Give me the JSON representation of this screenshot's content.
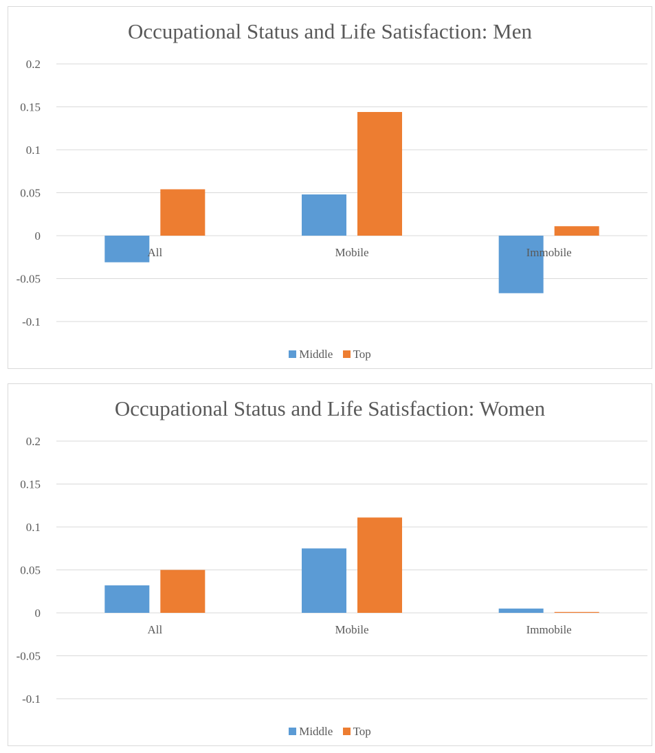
{
  "colors": {
    "middle": "#5b9bd5",
    "top": "#ed7d31",
    "grid": "#d9d9d9",
    "text": "#595959"
  },
  "chart_data": [
    {
      "type": "bar",
      "title": "Occupational Status and Life Satisfaction: Men",
      "categories": [
        "All",
        "Mobile",
        "Immobile"
      ],
      "series": [
        {
          "name": "Middle",
          "values": [
            -0.031,
            0.048,
            -0.067
          ]
        },
        {
          "name": "Top",
          "values": [
            0.054,
            0.144,
            0.011
          ]
        }
      ],
      "ylim": [
        -0.1,
        0.2
      ],
      "yticks": [
        "0.2",
        "0.15",
        "0.1",
        "0.05",
        "0",
        "-0.05",
        "-0.1"
      ],
      "grid": true,
      "legend": "bottom"
    },
    {
      "type": "bar",
      "title": "Occupational Status and Life Satisfaction: Women",
      "categories": [
        "All",
        "Mobile",
        "Immobile"
      ],
      "series": [
        {
          "name": "Middle",
          "values": [
            0.032,
            0.075,
            0.005
          ]
        },
        {
          "name": "Top",
          "values": [
            0.05,
            0.111,
            0.001
          ]
        }
      ],
      "ylim": [
        -0.1,
        0.2
      ],
      "yticks": [
        "0.2",
        "0.15",
        "0.1",
        "0.05",
        "0",
        "-0.05",
        "-0.1"
      ],
      "grid": true,
      "legend": "bottom"
    }
  ]
}
